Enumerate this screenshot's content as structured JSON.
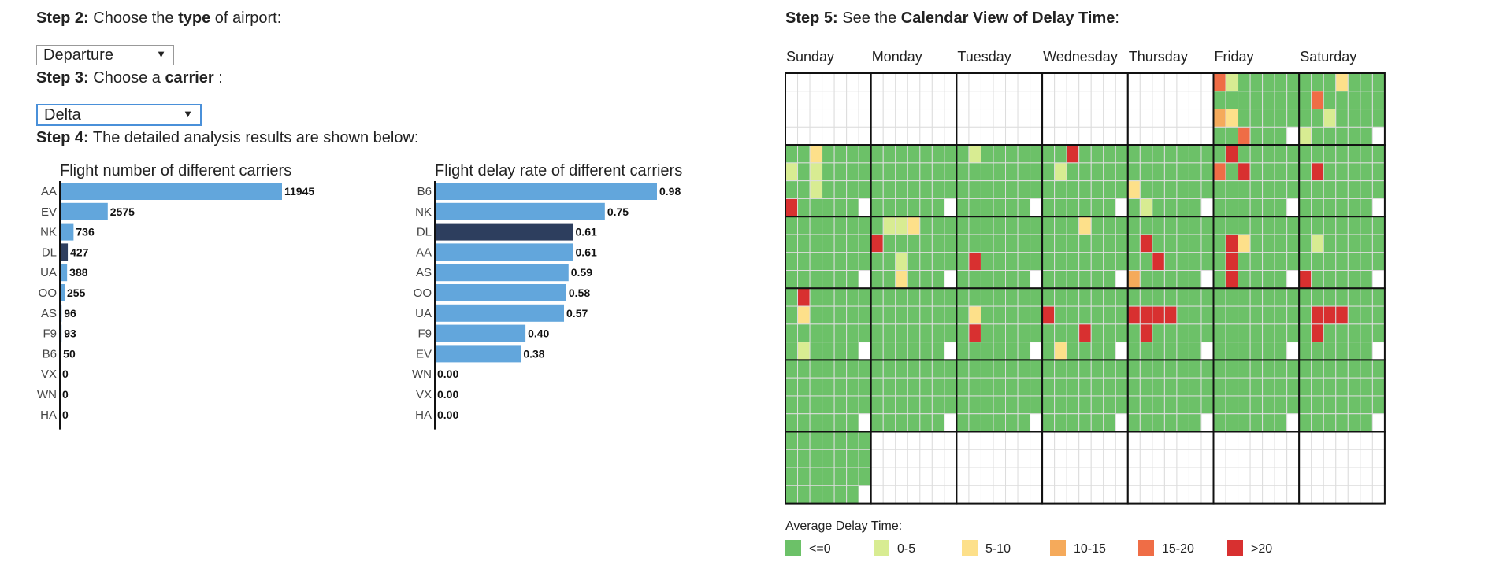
{
  "steps": {
    "step2": {
      "label": "Step 2:",
      "pre": "Choose the",
      "bold": "type",
      "post": "of airport:"
    },
    "step3": {
      "label": "Step 3:",
      "pre": "Choose a",
      "bold": "carrier",
      "post": ":"
    },
    "step4": {
      "label": "Step 4:",
      "text": "The detailed analysis results are shown below:"
    },
    "step5": {
      "label": "Step 5:",
      "pre": "See the",
      "bold": "Calendar View of Delay Time",
      "post": ":"
    }
  },
  "airport_type_select": {
    "value": "Departure"
  },
  "carrier_select": {
    "value": "Delta"
  },
  "colors": {
    "bar": "#62a6dc",
    "bar_selected": "#2d3e5e",
    "levels": [
      "#6cc168",
      "#d8ec92",
      "#fde08a",
      "#f5aa5b",
      "#ef6d46",
      "#d83030"
    ]
  },
  "chart_data": [
    {
      "type": "bar",
      "orientation": "horizontal",
      "title": "Flight number of different carriers",
      "categories": [
        "AA",
        "EV",
        "NK",
        "DL",
        "UA",
        "OO",
        "AS",
        "F9",
        "B6",
        "VX",
        "WN",
        "HA"
      ],
      "values": [
        11945,
        2575,
        736,
        427,
        388,
        255,
        96,
        93,
        50,
        0,
        0,
        0
      ],
      "value_labels": [
        "11945",
        "2575",
        "736",
        "427",
        "388",
        "255",
        "96",
        "93",
        "50",
        "0",
        "0",
        "0"
      ],
      "highlight": "DL"
    },
    {
      "type": "bar",
      "orientation": "horizontal",
      "title": "Flight delay rate of different carriers",
      "categories": [
        "B6",
        "NK",
        "DL",
        "AA",
        "AS",
        "OO",
        "UA",
        "F9",
        "EV",
        "WN",
        "VX",
        "HA"
      ],
      "values": [
        0.98,
        0.75,
        0.61,
        0.61,
        0.59,
        0.58,
        0.57,
        0.4,
        0.38,
        0.0,
        0.0,
        0.0
      ],
      "value_labels": [
        "0.98",
        "0.75",
        "0.61",
        "0.61",
        "0.59",
        "0.58",
        "0.57",
        "0.40",
        "0.38",
        "0.00",
        "0.00",
        "0.00"
      ],
      "highlight": "DL"
    },
    {
      "type": "heatmap",
      "title": "Calendar View of Delay Time",
      "days": [
        "Sunday",
        "Monday",
        "Tuesday",
        "Wednesday",
        "Thursday",
        "Friday",
        "Saturday"
      ],
      "legend_title": "Average Delay Time:",
      "legend": [
        "<=0",
        "0-5",
        "5-10",
        "10-15",
        "15-20",
        ">20"
      ],
      "weeks": [
        [
          null,
          null,
          null,
          null,
          null,
          "1a.0.d3.00f.0000.g0000",
          "0003.0f00.00a0.b000"
        ],
        [
          "0030.b020.0020.e000",
          "0000.0000.0000.0000",
          "0200.0000.0000.0000",
          "0050.0b00.0000.0000",
          "0000.0000.c000.0a00",
          "04000.f050.0000.0000",
          "0000.0500.0000.0000"
        ],
        [
          "0000.0000.0000.0000",
          "0223.5000.0020.00c0",
          "0000.0000.0500.0000",
          "0003.0000.0000.0000",
          "0000.0500.0050.d000",
          "0000.0530.0400.0500",
          "0000.0200.0000.5000"
        ],
        [
          "0500.0300.0000.0200",
          "0000.0000.0000.0000",
          "0000.0300.0500.0000",
          "0000.5000.0005.0300",
          "0000.5555.0500.0000",
          "0000.0000.0000.0000",
          "0000.0555.0500.0000"
        ],
        [
          "0000.0000.0000.0000",
          "0000.0000.0000.0000",
          "0000.0000.0000.0000",
          "0000.0000.0000.0000",
          "0000.0000.0000.0000",
          "0000.0000.0000.0000",
          "0000.0000.0000.0000"
        ],
        [
          "0000.0000.0000.0000",
          null,
          null,
          null,
          null,
          null,
          null
        ]
      ]
    }
  ]
}
